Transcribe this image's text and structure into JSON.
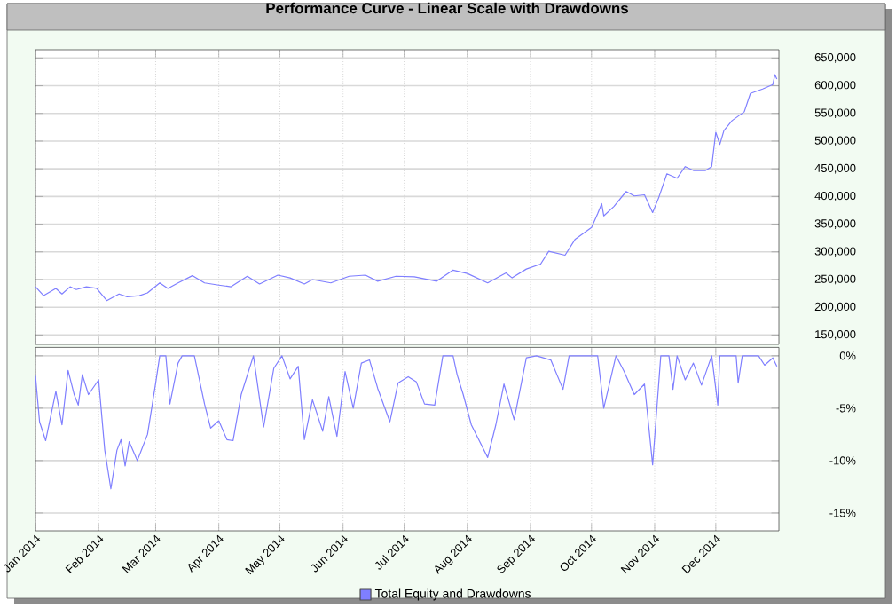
{
  "chart_data": [
    {
      "type": "line",
      "title": "Performance Curve - Linear Scale with Drawdowns",
      "tick_labels": "y",
      "grid": true,
      "xlim": [
        "2014-01-01",
        "2015-01-01"
      ],
      "xticks": [
        {
          "value": "2014-01-01",
          "label": null
        },
        {
          "value": "2014-02-01",
          "label": null
        },
        {
          "value": "2014-03-01",
          "label": null
        },
        {
          "value": "2014-04-01",
          "label": null
        },
        {
          "value": "2014-05-01",
          "label": null
        },
        {
          "value": "2014-06-01",
          "label": null
        },
        {
          "value": "2014-07-01",
          "label": null
        },
        {
          "value": "2014-08-01",
          "label": null
        },
        {
          "value": "2014-09-01",
          "label": null
        },
        {
          "value": "2014-10-01",
          "label": null
        },
        {
          "value": "2014-11-01",
          "label": null
        },
        {
          "value": "2014-12-01",
          "label": null
        }
      ],
      "ylim": [
        133000,
        665000
      ],
      "yticks": [
        {
          "value": 150000,
          "label": "150,000"
        },
        {
          "value": 200000,
          "label": "200,000"
        },
        {
          "value": 250000,
          "label": "250,000"
        },
        {
          "value": 300000,
          "label": "300,000"
        },
        {
          "value": 350000,
          "label": "350,000"
        },
        {
          "value": 400000,
          "label": "400,000"
        },
        {
          "value": 450000,
          "label": "450,000"
        },
        {
          "value": 500000,
          "label": "500,000"
        },
        {
          "value": 550000,
          "label": "550,000"
        },
        {
          "value": 600000,
          "label": "600,000"
        },
        {
          "value": 650000,
          "label": "650,000"
        }
      ],
      "series": [
        {
          "color": "#7f7fff",
          "x": [
            "2014-01-01",
            "2014-01-05",
            "2014-01-11",
            "2014-01-14",
            "2014-01-18",
            "2014-01-21",
            "2014-01-26",
            "2014-01-31",
            "2014-02-05",
            "2014-02-11",
            "2014-02-15",
            "2014-02-21",
            "2014-02-25",
            "2014-03-03",
            "2014-03-07",
            "2014-03-12",
            "2014-03-19",
            "2014-03-25",
            "2014-04-01",
            "2014-04-07",
            "2014-04-15",
            "2014-04-21",
            "2014-04-30",
            "2014-05-06",
            "2014-05-13",
            "2014-05-17",
            "2014-05-26",
            "2014-06-04",
            "2014-06-12",
            "2014-06-18",
            "2014-06-27",
            "2014-07-06",
            "2014-07-17",
            "2014-07-25",
            "2014-08-01",
            "2014-08-11",
            "2014-08-20",
            "2014-08-23",
            "2014-08-30",
            "2014-09-06",
            "2014-09-10",
            "2014-09-18",
            "2014-09-23",
            "2014-10-01",
            "2014-10-04",
            "2014-10-06",
            "2014-10-07",
            "2014-10-12",
            "2014-10-18",
            "2014-10-22",
            "2014-10-27",
            "2014-10-31",
            "2014-11-03",
            "2014-11-07",
            "2014-11-12",
            "2014-11-16",
            "2014-11-20",
            "2014-11-26",
            "2014-11-29",
            "2014-12-01",
            "2014-12-03",
            "2014-12-05",
            "2014-12-09",
            "2014-12-15",
            "2014-12-18",
            "2014-12-24",
            "2014-12-29",
            "2014-12-30",
            "2014-12-31"
          ],
          "values": [
            237000,
            221000,
            234000,
            224000,
            237000,
            232000,
            237000,
            234000,
            212000,
            224000,
            219000,
            221000,
            226000,
            244000,
            234000,
            244000,
            257000,
            244000,
            240000,
            237000,
            256000,
            242000,
            258000,
            253000,
            242000,
            250000,
            244000,
            256000,
            258000,
            247000,
            256000,
            255000,
            247000,
            267000,
            261000,
            244000,
            262000,
            253000,
            269000,
            278000,
            301000,
            294000,
            323000,
            344000,
            369000,
            387000,
            365000,
            382000,
            409000,
            401000,
            403000,
            371000,
            398000,
            441000,
            433000,
            454000,
            447000,
            447000,
            454000,
            516000,
            494000,
            519000,
            537000,
            553000,
            586000,
            594000,
            602000,
            620000,
            612000
          ]
        }
      ]
    },
    {
      "type": "line",
      "legend": "bottom",
      "grid": true,
      "xlim": [
        "2014-01-01",
        "2015-01-01"
      ],
      "xticks": [
        {
          "value": "2014-01-01",
          "label": "Jan 2014"
        },
        {
          "value": "2014-02-01",
          "label": "Feb 2014"
        },
        {
          "value": "2014-03-01",
          "label": "Mar 2014"
        },
        {
          "value": "2014-04-01",
          "label": "Apr 2014"
        },
        {
          "value": "2014-05-01",
          "label": "May 2014"
        },
        {
          "value": "2014-06-01",
          "label": "Jun 2014"
        },
        {
          "value": "2014-07-01",
          "label": "Jul 2014"
        },
        {
          "value": "2014-08-01",
          "label": "Aug 2014"
        },
        {
          "value": "2014-09-01",
          "label": "Sep 2014"
        },
        {
          "value": "2014-10-01",
          "label": "Oct 2014"
        },
        {
          "value": "2014-11-01",
          "label": "Nov 2014"
        },
        {
          "value": "2014-12-01",
          "label": "Dec 2014"
        }
      ],
      "ylim": [
        -16.7,
        0.8
      ],
      "yticks": [
        {
          "value": 0,
          "label": "0%"
        },
        {
          "value": -5,
          "label": "-5%"
        },
        {
          "value": -10,
          "label": "-10%"
        },
        {
          "value": -15,
          "label": "-15%"
        }
      ],
      "series": [
        {
          "name": "Total Equity and Drawdowns",
          "color": "#7f7fff",
          "x": [
            "2014-01-01",
            "2014-01-03",
            "2014-01-06",
            "2014-01-11",
            "2014-01-14",
            "2014-01-17",
            "2014-01-20",
            "2014-01-22",
            "2014-01-24",
            "2014-01-27",
            "2014-02-01",
            "2014-02-04",
            "2014-02-07",
            "2014-02-10",
            "2014-02-12",
            "2014-02-14",
            "2014-02-16",
            "2014-02-20",
            "2014-02-25",
            "2014-03-01",
            "2014-03-03",
            "2014-03-06",
            "2014-03-08",
            "2014-03-12",
            "2014-03-14",
            "2014-03-20",
            "2014-03-25",
            "2014-03-28",
            "2014-04-01",
            "2014-04-05",
            "2014-04-08",
            "2014-04-12",
            "2014-04-18",
            "2014-04-23",
            "2014-04-28",
            "2014-05-02",
            "2014-05-06",
            "2014-05-10",
            "2014-05-13",
            "2014-05-17",
            "2014-05-22",
            "2014-05-25",
            "2014-05-29",
            "2014-06-02",
            "2014-06-06",
            "2014-06-10",
            "2014-06-14",
            "2014-06-18",
            "2014-06-24",
            "2014-06-28",
            "2014-07-03",
            "2014-07-07",
            "2014-07-11",
            "2014-07-16",
            "2014-07-20",
            "2014-07-25",
            "2014-07-27",
            "2014-07-30",
            "2014-08-03",
            "2014-08-11",
            "2014-08-15",
            "2014-08-19",
            "2014-08-24",
            "2014-08-30",
            "2014-09-04",
            "2014-09-11",
            "2014-09-17",
            "2014-09-20",
            "2014-10-04",
            "2014-10-07",
            "2014-10-13",
            "2014-10-17",
            "2014-10-22",
            "2014-10-27",
            "2014-10-31",
            "2014-11-04",
            "2014-11-08",
            "2014-11-10",
            "2014-11-12",
            "2014-11-16",
            "2014-11-20",
            "2014-11-24",
            "2014-11-29",
            "2014-12-02",
            "2014-12-03",
            "2014-12-11",
            "2014-12-12",
            "2014-12-14",
            "2014-12-22",
            "2014-12-25",
            "2014-12-29",
            "2014-12-31"
          ],
          "values": [
            -1.9,
            -6.3,
            -8.1,
            -3.4,
            -6.6,
            -1.4,
            -3.7,
            -4.7,
            -1.8,
            -3.7,
            -2.3,
            -9.0,
            -12.7,
            -9.0,
            -8.0,
            -10.5,
            -8.2,
            -10.0,
            -7.5,
            -2.6,
            0,
            0,
            -4.6,
            -0.7,
            0,
            0,
            -4.6,
            -6.9,
            -6.2,
            -8.0,
            -8.1,
            -3.7,
            0,
            -6.8,
            -1.2,
            0,
            -2.2,
            -1.0,
            -8.0,
            -4.2,
            -7.2,
            -3.9,
            -7.7,
            -1.5,
            -5.0,
            -0.7,
            -0.4,
            -3.1,
            -6.3,
            -2.6,
            -2.0,
            -2.5,
            -4.6,
            -4.7,
            0,
            0,
            -1.8,
            -3.7,
            -6.6,
            -9.7,
            -6.6,
            -2.7,
            -6.1,
            -0.2,
            0,
            -0.4,
            -3.2,
            0,
            0,
            -5.0,
            0,
            -1.5,
            -3.7,
            -2.7,
            -10.4,
            0,
            0,
            -3.2,
            0,
            -2.3,
            -0.7,
            -2.8,
            0,
            -4.7,
            0,
            0,
            -2.6,
            0,
            0,
            -0.9,
            -0.2,
            -1.0
          ]
        }
      ]
    }
  ]
}
